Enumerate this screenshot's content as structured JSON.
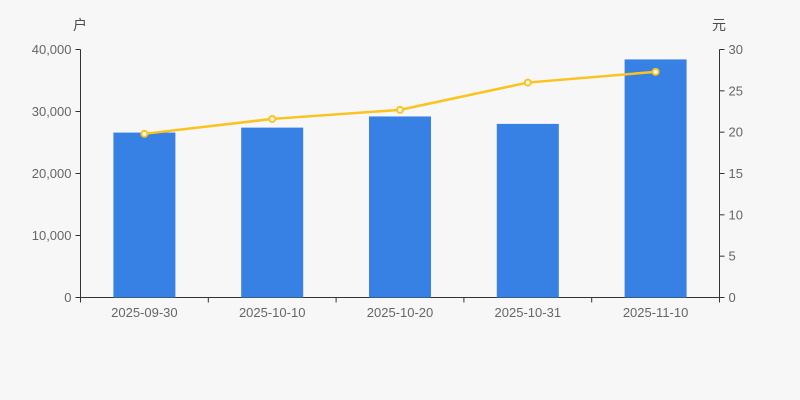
{
  "page": {
    "background_color": "#f7f7f7"
  },
  "chart_data": {
    "type": "bar",
    "subtype": "bar+line dual axis",
    "title": "",
    "categories": [
      "2025-09-30",
      "2025-10-10",
      "2025-10-20",
      "2025-10-31",
      "2025-11-10"
    ],
    "series": [
      {
        "id": "bars",
        "type": "bar",
        "axis": "left",
        "color": "#3780e4",
        "values": [
          26600,
          27400,
          29200,
          28000,
          38400
        ]
      },
      {
        "id": "line",
        "type": "line",
        "axis": "right",
        "color": "#fac31d",
        "marker_fill": "#fffdf2",
        "values": [
          19.8,
          21.6,
          22.7,
          26.0,
          27.3
        ]
      }
    ],
    "left_axis": {
      "unit_label": "户",
      "min": 0,
      "max": 40000,
      "ticks": [
        0,
        10000,
        20000,
        30000,
        40000
      ],
      "tick_labels": [
        "0",
        "10,000",
        "20,000",
        "30,000",
        "40,000"
      ]
    },
    "right_axis": {
      "unit_label": "元",
      "min": 0,
      "max": 30,
      "ticks": [
        0,
        5,
        10,
        15,
        20,
        25,
        30
      ],
      "tick_labels": [
        "0",
        "5",
        "10",
        "15",
        "20",
        "25",
        "30"
      ]
    },
    "grid": false,
    "legend": "none",
    "axis_color": "#333333",
    "tick_label_color": "#666666",
    "unit_label_color": "#4d4d4d"
  }
}
